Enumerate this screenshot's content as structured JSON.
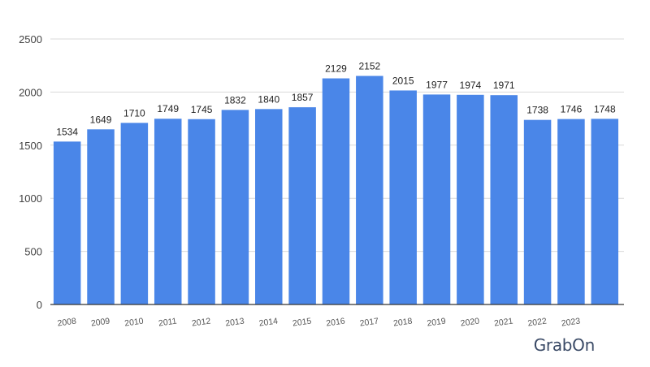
{
  "chart_data": {
    "type": "bar",
    "categories": [
      "2008",
      "2009",
      "2010",
      "2011",
      "2012",
      "2013",
      "2014",
      "2015",
      "2016",
      "2017",
      "2018",
      "2019",
      "2020",
      "2021",
      "2022",
      "2023",
      ""
    ],
    "values": [
      1534,
      1649,
      1710,
      1749,
      1745,
      1832,
      1840,
      1857,
      2129,
      2152,
      2015,
      1977,
      1974,
      1971,
      1738,
      1746,
      1748
    ],
    "yticks": [
      0,
      500,
      1000,
      1500,
      2000,
      2500
    ],
    "ylim": [
      0,
      2500
    ],
    "title": "",
    "xlabel": "",
    "ylabel": "",
    "grid": true,
    "bar_color": "#4a86e8",
    "gridline_color": "#d9d9d9",
    "axis_color": "#333333"
  },
  "watermark": {
    "text": "GrabOn"
  }
}
